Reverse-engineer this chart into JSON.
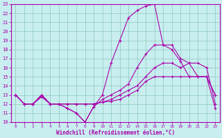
{
  "xlabel": "Windchill (Refroidissement éolien,°C)",
  "bg_color": "#c8eef0",
  "grid_color": "#8ec8b8",
  "line_color": "#aa00aa",
  "spine_color": "#aa00aa",
  "xlim": [
    -0.5,
    23.5
  ],
  "ylim": [
    10,
    23
  ],
  "xticks": [
    0,
    1,
    2,
    3,
    4,
    5,
    6,
    7,
    8,
    9,
    10,
    11,
    12,
    13,
    14,
    15,
    16,
    17,
    18,
    19,
    20,
    21,
    22,
    23
  ],
  "yticks": [
    10,
    11,
    12,
    13,
    14,
    15,
    16,
    17,
    18,
    19,
    20,
    21,
    22,
    23
  ],
  "curve1_x": [
    0,
    1,
    2,
    3,
    4,
    5,
    6,
    7,
    8,
    9,
    10,
    11,
    12,
    13,
    14,
    15,
    16,
    17,
    18,
    19,
    20,
    21,
    22,
    23
  ],
  "curve1_y": [
    13,
    12,
    12,
    13,
    12,
    12,
    11.5,
    11,
    10,
    11.7,
    13,
    16.5,
    19,
    21.5,
    22.3,
    22.8,
    23,
    18.5,
    18.5,
    17,
    16.5,
    15,
    15,
    13
  ],
  "curve2_x": [
    0,
    1,
    2,
    3,
    4,
    5,
    6,
    7,
    8,
    9,
    10,
    11,
    12,
    13,
    14,
    15,
    16,
    17,
    18,
    19,
    20,
    21,
    22,
    23
  ],
  "curve2_y": [
    13,
    12,
    12,
    13,
    12,
    12,
    11.5,
    11,
    10,
    11.7,
    12.5,
    13,
    13.5,
    14.2,
    16,
    17.5,
    18.5,
    18.5,
    18,
    16.7,
    15,
    15,
    15,
    13
  ],
  "curve3_x": [
    0,
    1,
    2,
    3,
    4,
    5,
    6,
    7,
    8,
    9,
    10,
    11,
    12,
    13,
    14,
    15,
    16,
    17,
    18,
    19,
    20,
    21,
    22,
    23
  ],
  "curve3_y": [
    13,
    12,
    12,
    12.8,
    12,
    12,
    12,
    12,
    12,
    12,
    12.2,
    12.5,
    13,
    13.5,
    14,
    15,
    16,
    16.5,
    16.5,
    16,
    16.5,
    16.5,
    16,
    12
  ],
  "curve4_x": [
    0,
    1,
    2,
    3,
    4,
    5,
    6,
    7,
    8,
    9,
    10,
    11,
    12,
    13,
    14,
    15,
    16,
    17,
    18,
    19,
    20,
    21,
    22,
    23
  ],
  "curve4_y": [
    13,
    12,
    12,
    12.8,
    12,
    12,
    12,
    12,
    12,
    12,
    12.2,
    12.3,
    12.5,
    13,
    13.5,
    14.5,
    15,
    15,
    15,
    15,
    15,
    15,
    15,
    11.5
  ]
}
